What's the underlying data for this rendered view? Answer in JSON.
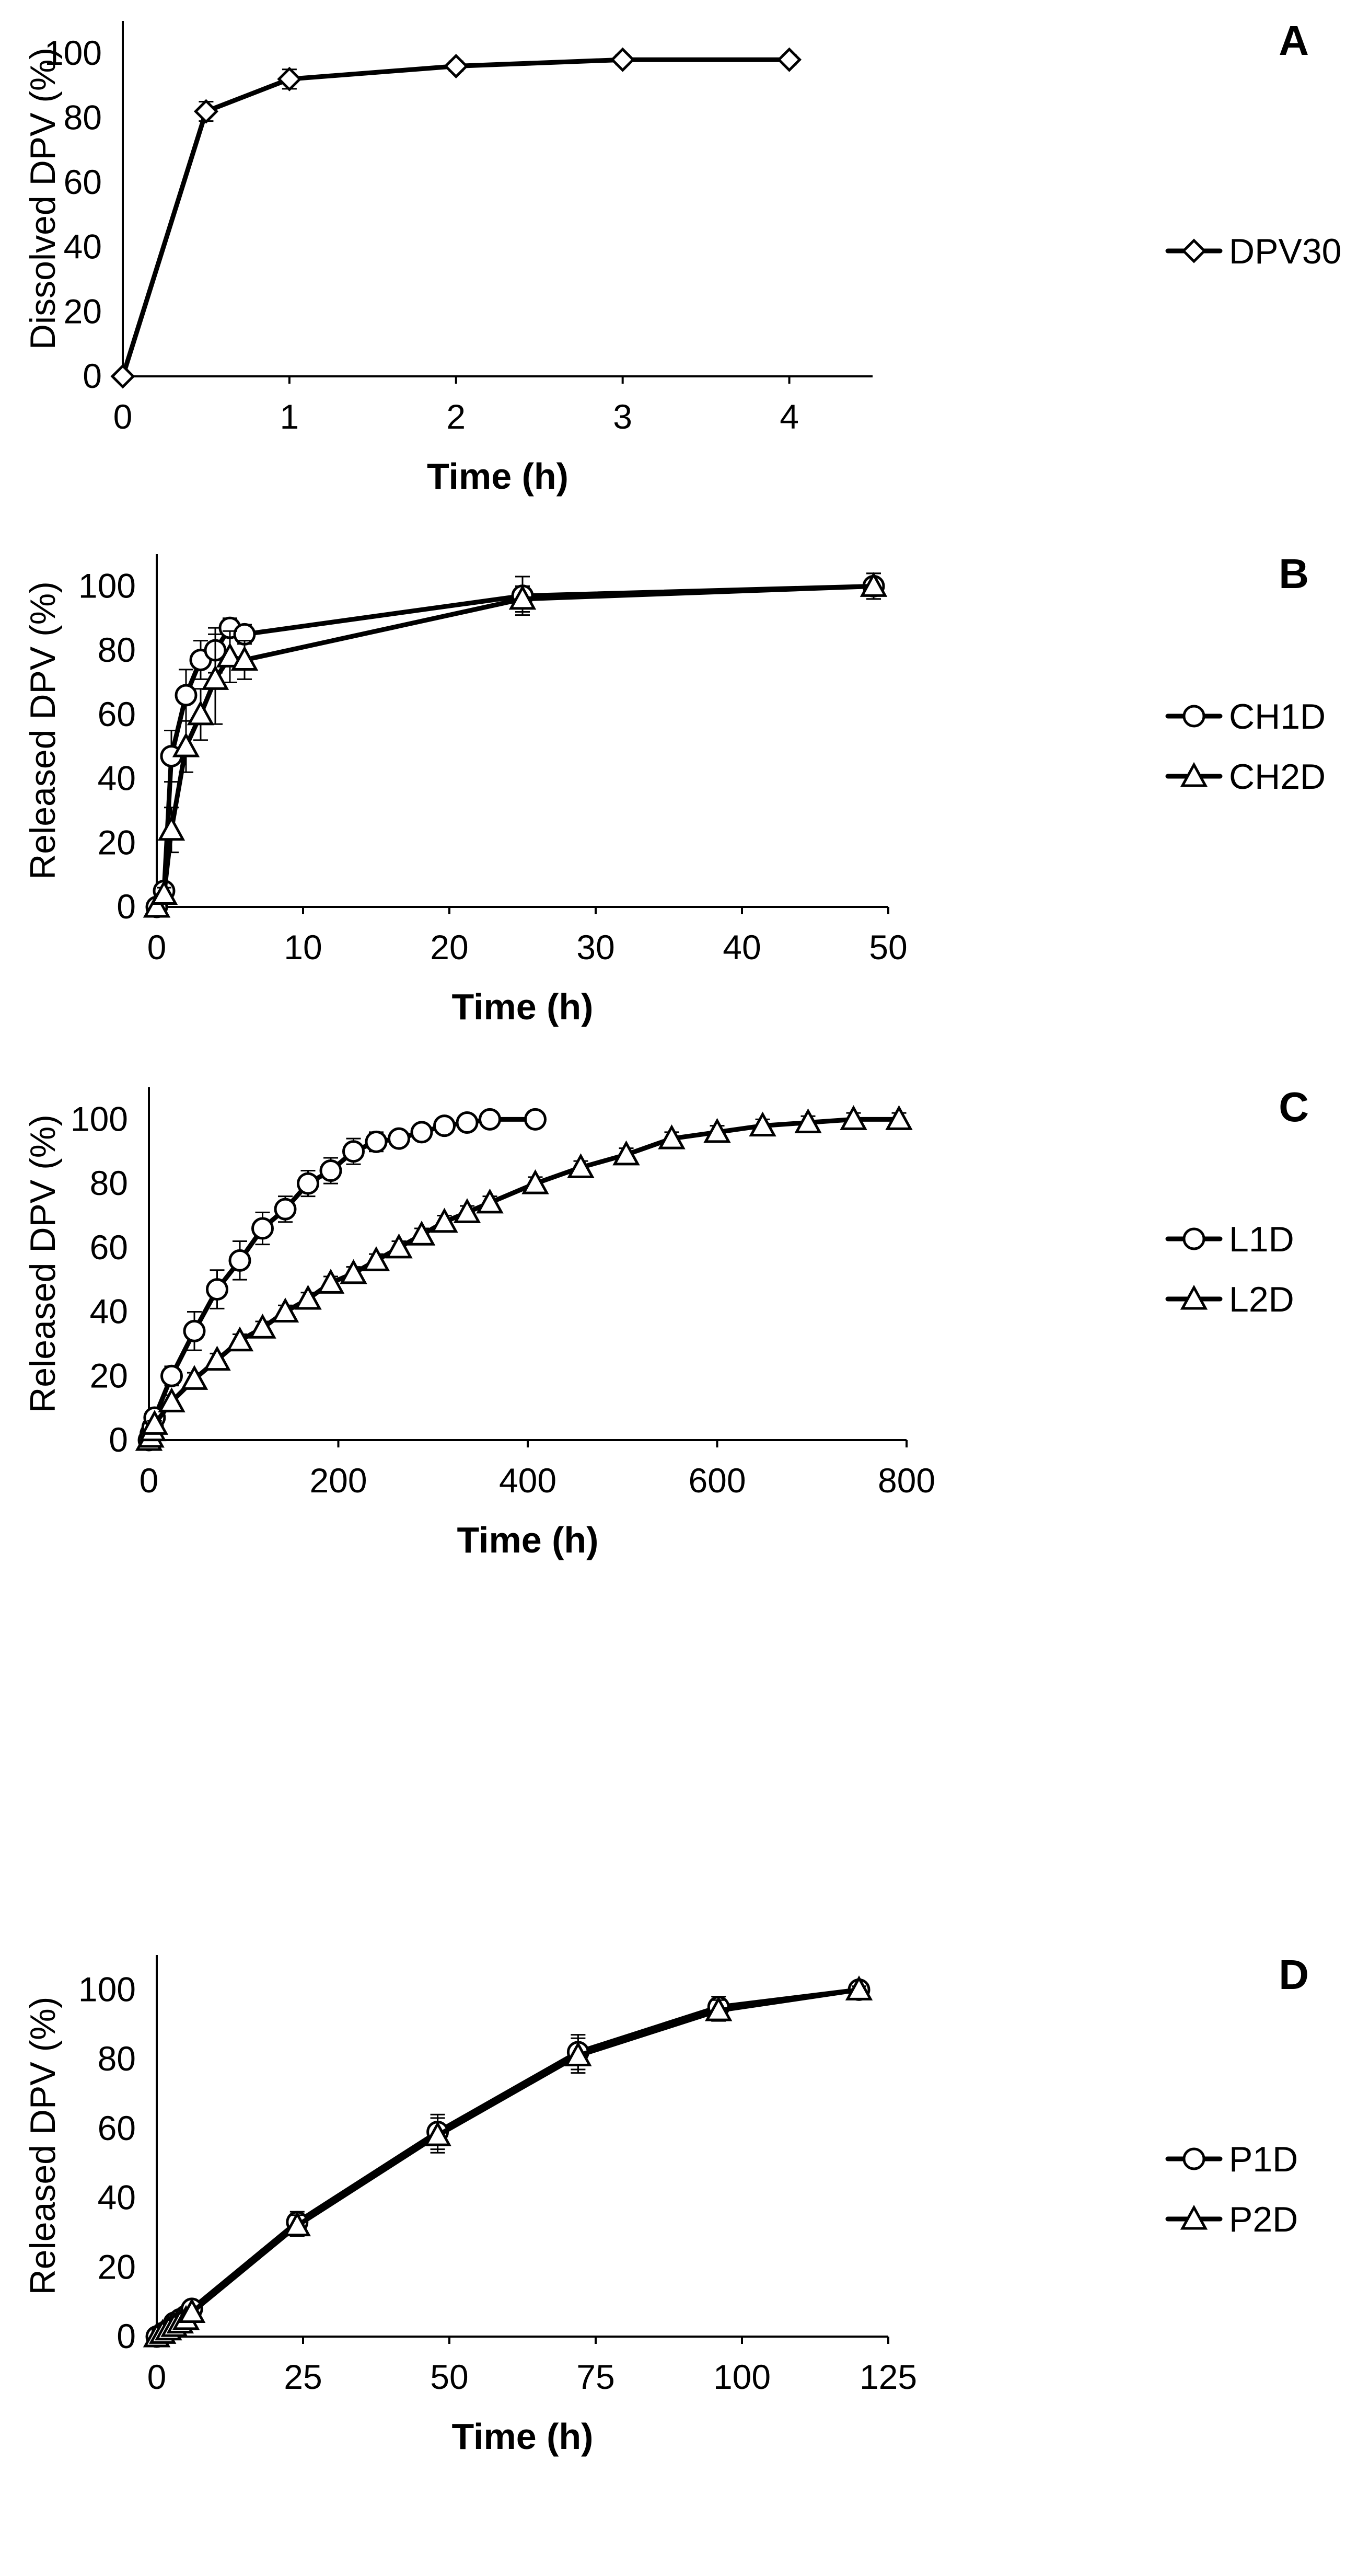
{
  "chart_data": [
    {
      "panel": "A",
      "type": "line",
      "xlabel": "Time (h)",
      "ylabel": "Dissolved DPV (%)",
      "xlim": [
        0,
        4.5
      ],
      "ylim": [
        0,
        110
      ],
      "xticks": [
        0,
        1,
        2,
        3,
        4
      ],
      "yticks": [
        0,
        20,
        40,
        60,
        80,
        100
      ],
      "grid": false,
      "legend": "right",
      "series": [
        {
          "name": "DPV30",
          "marker": "diamond",
          "x": [
            0,
            0.5,
            1,
            2,
            3,
            4
          ],
          "values": [
            0,
            82,
            92,
            96,
            98,
            98
          ],
          "errors": [
            0,
            3,
            3,
            1.5,
            1.5,
            1.5
          ]
        }
      ]
    },
    {
      "panel": "B",
      "type": "line",
      "xlabel": "Time (h)",
      "ylabel": "Released DPV (%)",
      "xlim": [
        0,
        50
      ],
      "ylim": [
        0,
        110
      ],
      "xticks": [
        0,
        10,
        20,
        30,
        40,
        50
      ],
      "yticks": [
        0,
        20,
        40,
        60,
        80,
        100
      ],
      "grid": false,
      "legend": "right",
      "series": [
        {
          "name": "CH1D",
          "marker": "circle",
          "x": [
            0,
            0.5,
            1,
            2,
            3,
            4,
            5,
            6,
            25,
            49
          ],
          "values": [
            0,
            5,
            47,
            66,
            77,
            80,
            87,
            85,
            97,
            100
          ],
          "errors": [
            0,
            2,
            8,
            8,
            6,
            7,
            3,
            3,
            6,
            4
          ]
        },
        {
          "name": "CH2D",
          "marker": "triangle",
          "x": [
            0,
            0.5,
            1,
            2,
            3,
            4,
            5,
            6,
            25,
            49
          ],
          "values": [
            0,
            4,
            24,
            50,
            60,
            71,
            78,
            77,
            96,
            100
          ],
          "errors": [
            0,
            2,
            7,
            8,
            8,
            14,
            8,
            6,
            4,
            4
          ]
        }
      ]
    },
    {
      "panel": "C",
      "type": "line",
      "xlabel": "Time (h)",
      "ylabel": "Released DPV (%)",
      "xlim": [
        0,
        800
      ],
      "ylim": [
        0,
        110
      ],
      "xticks": [
        0,
        200,
        400,
        600,
        800
      ],
      "yticks": [
        0,
        20,
        40,
        60,
        80,
        100
      ],
      "grid": false,
      "legend": "right",
      "series": [
        {
          "name": "L1D",
          "marker": "circle",
          "x": [
            0,
            2,
            4,
            6,
            24,
            48,
            72,
            96,
            120,
            144,
            168,
            192,
            216,
            240,
            264,
            288,
            312,
            336,
            360,
            408
          ],
          "values": [
            0,
            2,
            4,
            7,
            20,
            34,
            47,
            56,
            66,
            72,
            80,
            84,
            90,
            93,
            94,
            96,
            98,
            99,
            100,
            100
          ],
          "errors": [
            0,
            1,
            1,
            2,
            3,
            6,
            6,
            6,
            5,
            4,
            4,
            4,
            4,
            3,
            2,
            2,
            1,
            1,
            1,
            2
          ]
        },
        {
          "name": "L2D",
          "marker": "triangle",
          "x": [
            0,
            2,
            4,
            6,
            24,
            48,
            72,
            96,
            120,
            144,
            168,
            192,
            216,
            240,
            264,
            288,
            312,
            336,
            360,
            408,
            456,
            504,
            552,
            600,
            648,
            696,
            744,
            792
          ],
          "values": [
            0,
            1,
            3,
            5,
            12,
            19,
            25,
            31,
            35,
            40,
            44,
            49,
            52,
            56,
            60,
            64,
            68,
            71,
            74,
            80,
            85,
            89,
            94,
            96,
            98,
            99,
            100,
            100
          ],
          "errors": [
            0,
            1,
            1,
            1,
            2,
            2,
            2,
            2,
            2,
            2,
            2,
            2,
            2,
            2,
            2,
            2,
            2,
            2,
            2,
            2,
            2,
            2,
            2,
            2,
            2,
            2,
            2,
            2
          ]
        }
      ]
    },
    {
      "panel": "D",
      "type": "line",
      "xlabel": "Time (h)",
      "ylabel": "Released DPV (%)",
      "xlim": [
        0,
        125
      ],
      "ylim": [
        0,
        110
      ],
      "xticks": [
        0,
        25,
        50,
        75,
        100,
        125
      ],
      "yticks": [
        0,
        20,
        40,
        60,
        80,
        100
      ],
      "grid": false,
      "legend": "right",
      "series": [
        {
          "name": "P1D",
          "marker": "circle",
          "x": [
            0,
            1,
            2,
            3,
            4,
            5,
            6,
            24,
            48,
            72,
            96,
            120
          ],
          "values": [
            0,
            1,
            2,
            4,
            5,
            6,
            8,
            33,
            59,
            82,
            95,
            100
          ],
          "errors": [
            0,
            1,
            1,
            1,
            1,
            1,
            1,
            3,
            5,
            5,
            3,
            1
          ]
        },
        {
          "name": "P2D",
          "marker": "triangle",
          "x": [
            0,
            1,
            2,
            3,
            4,
            5,
            6,
            24,
            48,
            72,
            96,
            120
          ],
          "values": [
            0,
            1,
            2,
            3,
            4,
            5,
            7,
            32,
            58,
            81,
            94,
            100
          ],
          "errors": [
            0,
            1,
            1,
            1,
            1,
            1,
            1,
            3,
            5,
            5,
            3,
            1
          ]
        }
      ]
    }
  ]
}
